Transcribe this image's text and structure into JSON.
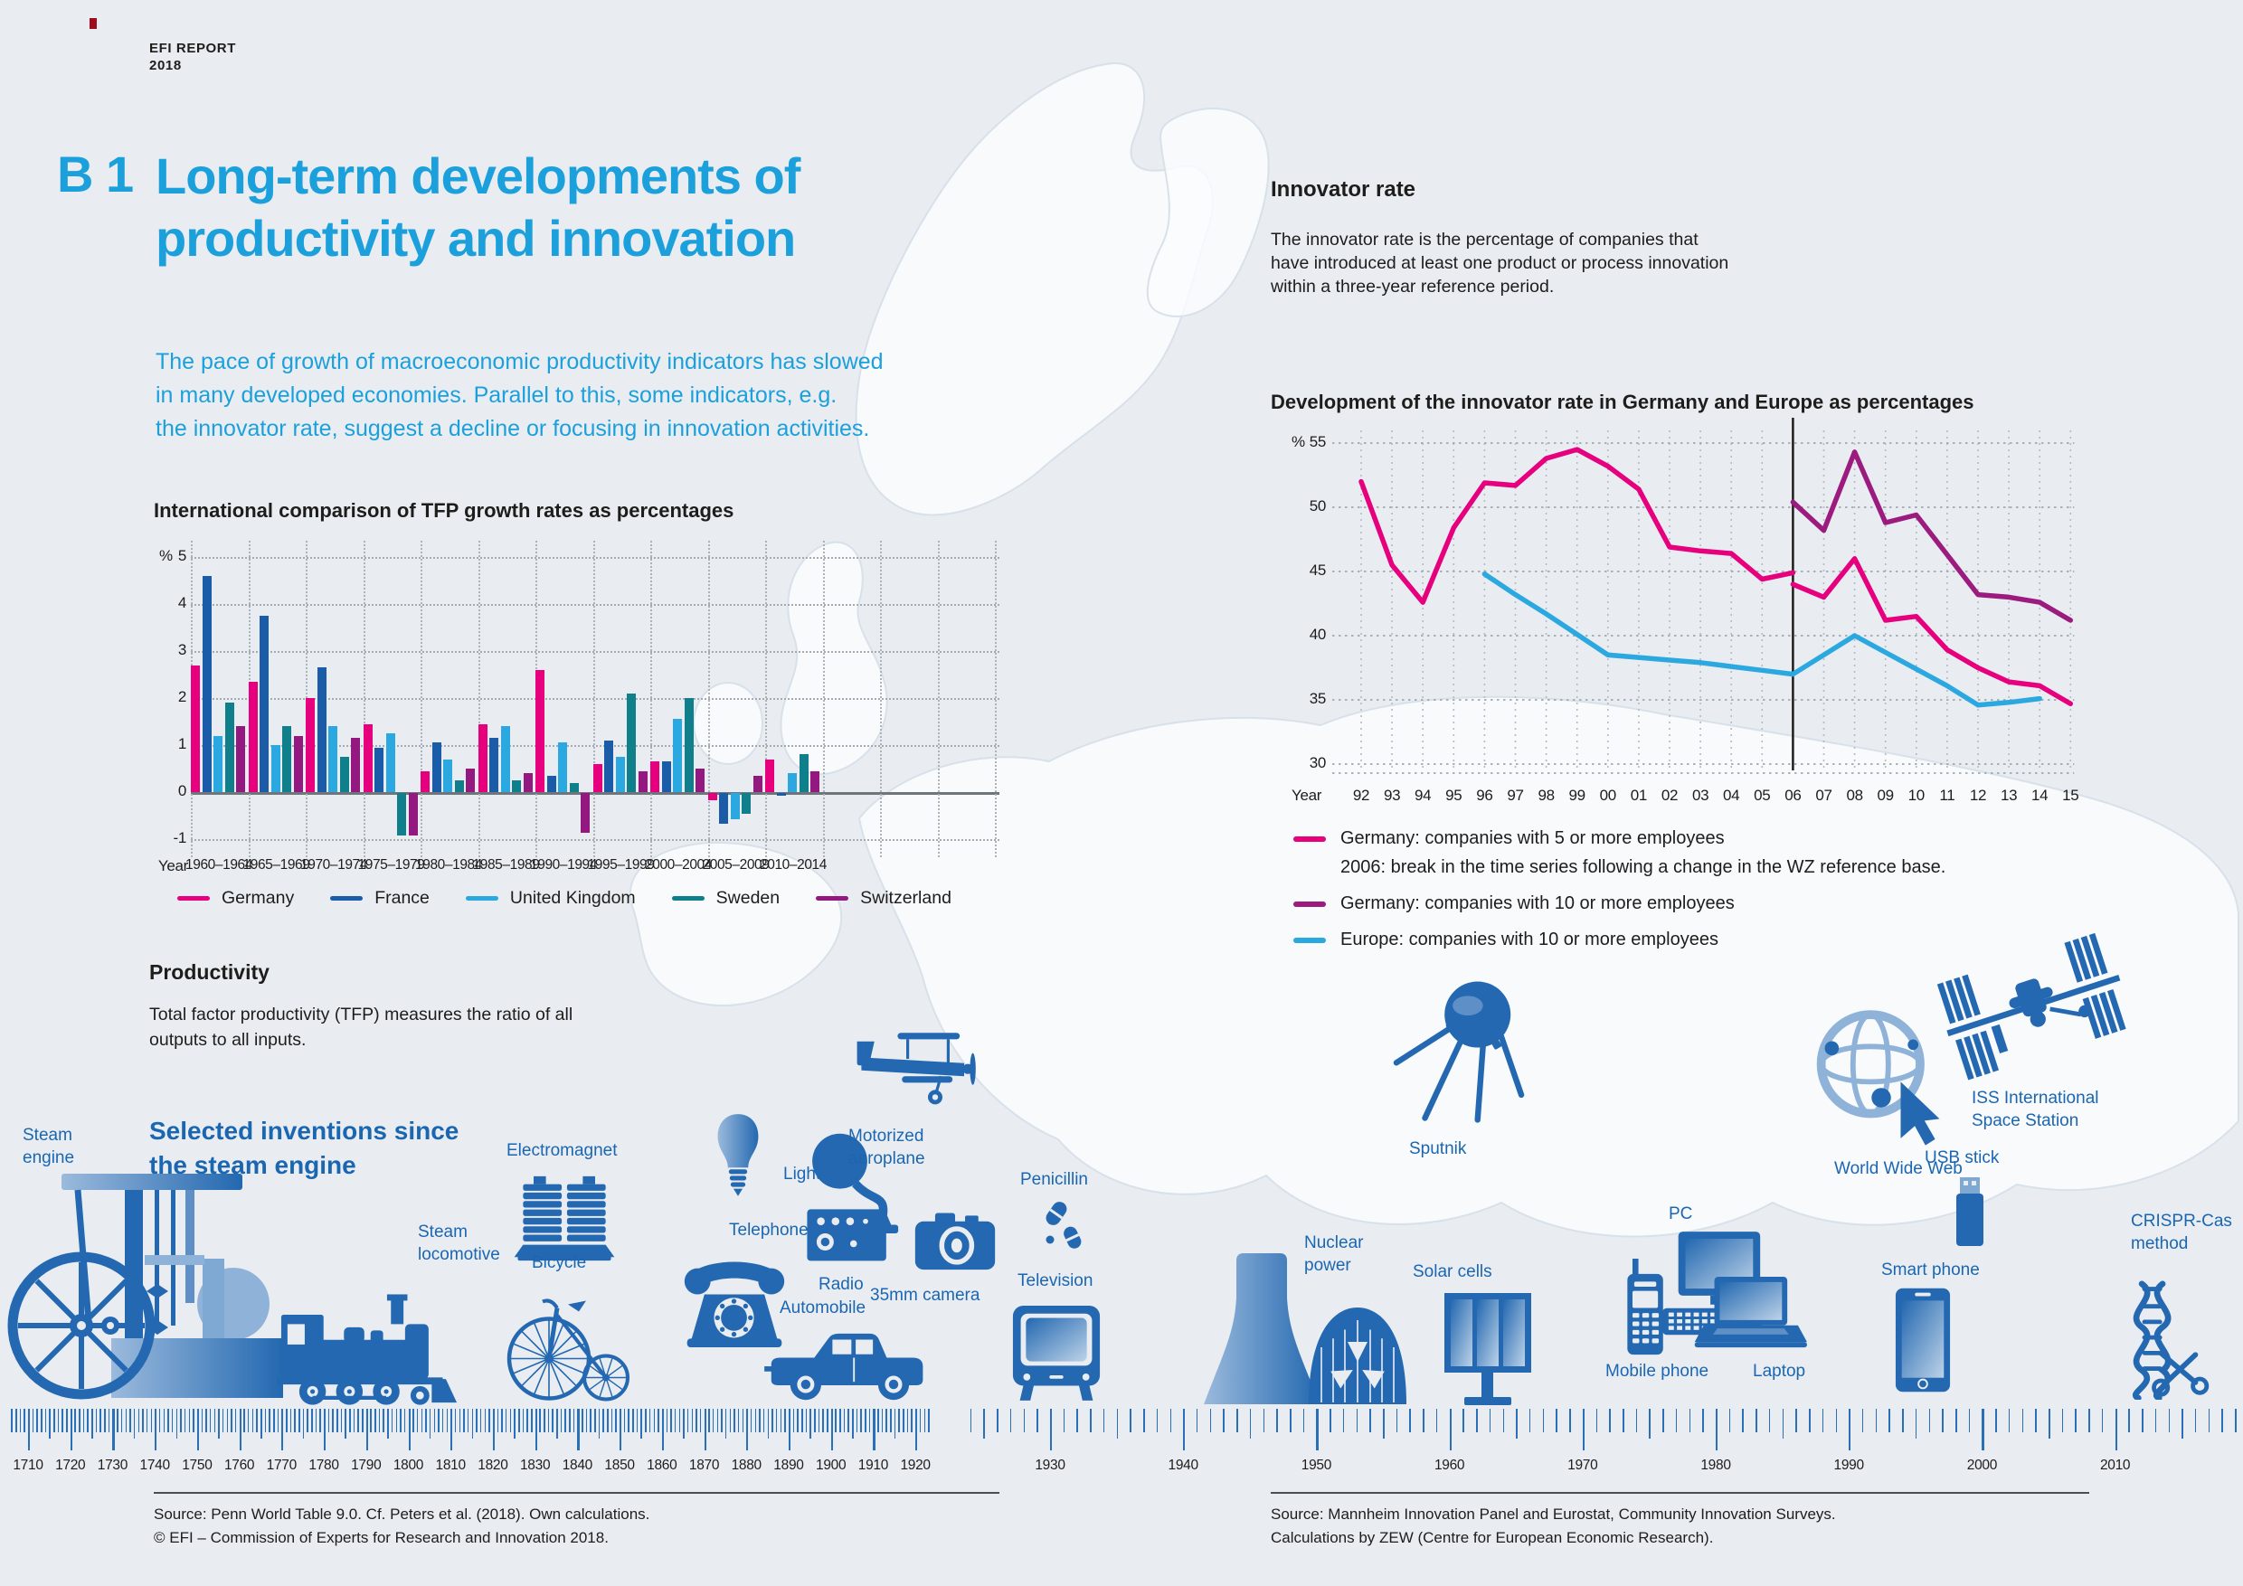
{
  "report_tag": {
    "line1": "EFI REPORT",
    "line2": "2018"
  },
  "title": {
    "number": "B 1",
    "line1": "Long-term developments of",
    "line2": "productivity and innovation"
  },
  "intro": [
    "The pace of growth of macroeconomic productivity indicators has slowed",
    "in many developed economies. Parallel to this, some indicators, e.g.",
    "the innovator rate, suggest a decline or focusing in innovation activities."
  ],
  "colors": {
    "accent_cyan": "#1BA0DC",
    "heading_blue": "#1B66B0",
    "icon_blue": "#2368B0",
    "icon_light_blue": "#8FB2D8",
    "background": "#E9EDF2",
    "pink": "#E6007E",
    "dark_blue": "#1A5CA8",
    "light_blue": "#2CA8E0",
    "teal": "#0E7F8B",
    "purple": "#93187F",
    "line_purple": "#9B1B7E",
    "tick_blue": "#2B6FB6"
  },
  "innovator": {
    "heading": "Innovator rate",
    "body": [
      "The innovator rate is the percentage of companies that",
      "have introduced at least one product or process innovation",
      "within a three-year reference period."
    ]
  },
  "chart_data": [
    {
      "id": "tfp",
      "type": "bar",
      "title": "International comparison of TFP growth rates as percentages",
      "unit": "%",
      "x_axis_label": "Year",
      "categories": [
        "1960–1964",
        "1965–1969",
        "1970–1974",
        "1975–1979",
        "1980–1984",
        "1985–1989",
        "1990–1994",
        "1995–1999",
        "2000–2004",
        "2005–2009",
        "2010–2014"
      ],
      "series": [
        {
          "name": "Germany",
          "color": "#E6007E",
          "values": [
            2.7,
            2.35,
            2.0,
            1.45,
            0.45,
            1.45,
            2.6,
            0.6,
            0.65,
            -0.15,
            0.7
          ]
        },
        {
          "name": "France",
          "color": "#1A5CA8",
          "values": [
            4.6,
            3.75,
            2.65,
            0.95,
            1.05,
            1.15,
            0.35,
            1.1,
            0.65,
            -0.65,
            -0.05
          ]
        },
        {
          "name": "United Kingdom",
          "color": "#2CA8E0",
          "values": [
            1.2,
            1.0,
            1.4,
            1.25,
            0.7,
            1.4,
            1.05,
            0.75,
            1.55,
            -0.55,
            0.4
          ]
        },
        {
          "name": "Sweden",
          "color": "#0E7F8B",
          "values": [
            1.9,
            1.4,
            0.75,
            -0.9,
            0.25,
            0.25,
            0.2,
            2.1,
            2.0,
            -0.45,
            0.8
          ]
        },
        {
          "name": "Switzerland",
          "color": "#93187F",
          "values": [
            1.4,
            1.2,
            1.15,
            -0.9,
            0.5,
            0.4,
            -0.85,
            0.45,
            0.5,
            0.35,
            0.45
          ]
        }
      ],
      "yticks": [
        5,
        4,
        3,
        2,
        1,
        0,
        -1
      ],
      "ylim": [
        -1.45,
        5.45
      ],
      "grid": "dotted"
    },
    {
      "id": "innovator_rate",
      "type": "line",
      "title": "Development of the innovator rate in Germany and Europe as percentages",
      "unit": "%",
      "x_axis_label": "Year",
      "x": [
        "92",
        "93",
        "94",
        "95",
        "96",
        "97",
        "98",
        "99",
        "00",
        "01",
        "02",
        "03",
        "04",
        "05",
        "06",
        "07",
        "08",
        "09",
        "10",
        "11",
        "12",
        "13",
        "14",
        "15"
      ],
      "yticks": [
        55,
        50,
        45,
        40,
        35,
        30
      ],
      "ylim": [
        28.5,
        56.5
      ],
      "break_x": "06",
      "series": [
        {
          "name": "Germany: companies with 5 or more employees",
          "note": "2006: break in the time series following a change in the WZ reference base.",
          "color": "#E6007E",
          "segments": [
            {
              "start": "92",
              "values": [
                52,
                45.5,
                42.6,
                48.4,
                51.9,
                51.7,
                53.8,
                54.5,
                53.2,
                51.4,
                46.9,
                46.6,
                46.4,
                44.4,
                44.9
              ]
            },
            {
              "start": "06",
              "values": [
                44,
                43,
                46,
                41.2,
                41.5,
                38.9,
                37.5,
                36.4,
                36.1,
                34.7
              ]
            }
          ]
        },
        {
          "name": "Germany: companies with 10 or more employees",
          "color": "#9B1B7E",
          "segments": [
            {
              "start": "06",
              "values": [
                50.4,
                48.2,
                54.3,
                48.8,
                49.4,
                46.3,
                43.2,
                43.0,
                42.6,
                41.2
              ]
            }
          ]
        },
        {
          "name": "Europe: companies with 10 or more employees",
          "color": "#2CA8E0",
          "segments": [
            {
              "start": "96",
              "values": [
                44.8,
                43.2,
                41.7,
                40.1,
                38.5,
                38.3,
                38.1,
                37.9,
                37.6,
                37.3,
                37.0,
                38.5,
                40.0,
                38.7,
                37.4,
                36.1,
                34.6,
                34.8,
                35.1
              ]
            }
          ]
        }
      ]
    }
  ],
  "productivity": {
    "heading": "Productivity",
    "body": [
      "Total factor productivity (TFP) measures the ratio of all",
      "outputs to all inputs."
    ]
  },
  "inventions": {
    "heading_line1": "Selected inventions since",
    "heading_line2": "the steam engine",
    "items": [
      {
        "id": "steam-engine",
        "label": "Steam\nengine"
      },
      {
        "id": "steam-locomotive",
        "label": "Steam\nlocomotive"
      },
      {
        "id": "electromagnet",
        "label": "Electromagnet"
      },
      {
        "id": "bicycle",
        "label": "Bicycle"
      },
      {
        "id": "light-bulb",
        "label": "Light bulb"
      },
      {
        "id": "telephone",
        "label": "Telephone"
      },
      {
        "id": "radio",
        "label": "Radio"
      },
      {
        "id": "automobile",
        "label": "Automobile"
      },
      {
        "id": "camera",
        "label": "35mm camera"
      },
      {
        "id": "aeroplane",
        "label": "Motorized\naeroplane"
      },
      {
        "id": "penicillin",
        "label": "Penicillin"
      },
      {
        "id": "television",
        "label": "Television"
      },
      {
        "id": "nuclear",
        "label": "Nuclear\npower"
      },
      {
        "id": "solar",
        "label": "Solar cells"
      },
      {
        "id": "sputnik",
        "label": "Sputnik"
      },
      {
        "id": "pc",
        "label": "PC"
      },
      {
        "id": "mobile",
        "label": "Mobile phone"
      },
      {
        "id": "laptop",
        "label": "Laptop"
      },
      {
        "id": "www",
        "label": "World Wide Web"
      },
      {
        "id": "iss",
        "label": "ISS International\nSpace Station"
      },
      {
        "id": "usb",
        "label": "USB stick"
      },
      {
        "id": "smartphone",
        "label": "Smart phone"
      },
      {
        "id": "crispr",
        "label": "CRISPR-Cas\nmethod"
      }
    ]
  },
  "timeline": {
    "decades_left": [
      "1710",
      "1720",
      "1730",
      "1740",
      "1750",
      "1760",
      "1770",
      "1780",
      "1790",
      "1800",
      "1810",
      "1820",
      "1830",
      "1840",
      "1850",
      "1860",
      "1870",
      "1880",
      "1890",
      "1900",
      "1910",
      "1920"
    ],
    "decades_right": [
      "1930",
      "1940",
      "1950",
      "1960",
      "1970",
      "1980",
      "1990",
      "2000",
      "2010"
    ]
  },
  "sources": {
    "left1": "Source: Penn World Table 9.0. Cf. Peters et al. (2018). Own calculations.",
    "left2": "© EFI – Commission of Experts for Research and Innovation 2018.",
    "right1": "Source: Mannheim Innovation Panel and Eurostat, Community Innovation Surveys.",
    "right2": "Calculations by ZEW (Centre for European Economic Research)."
  }
}
